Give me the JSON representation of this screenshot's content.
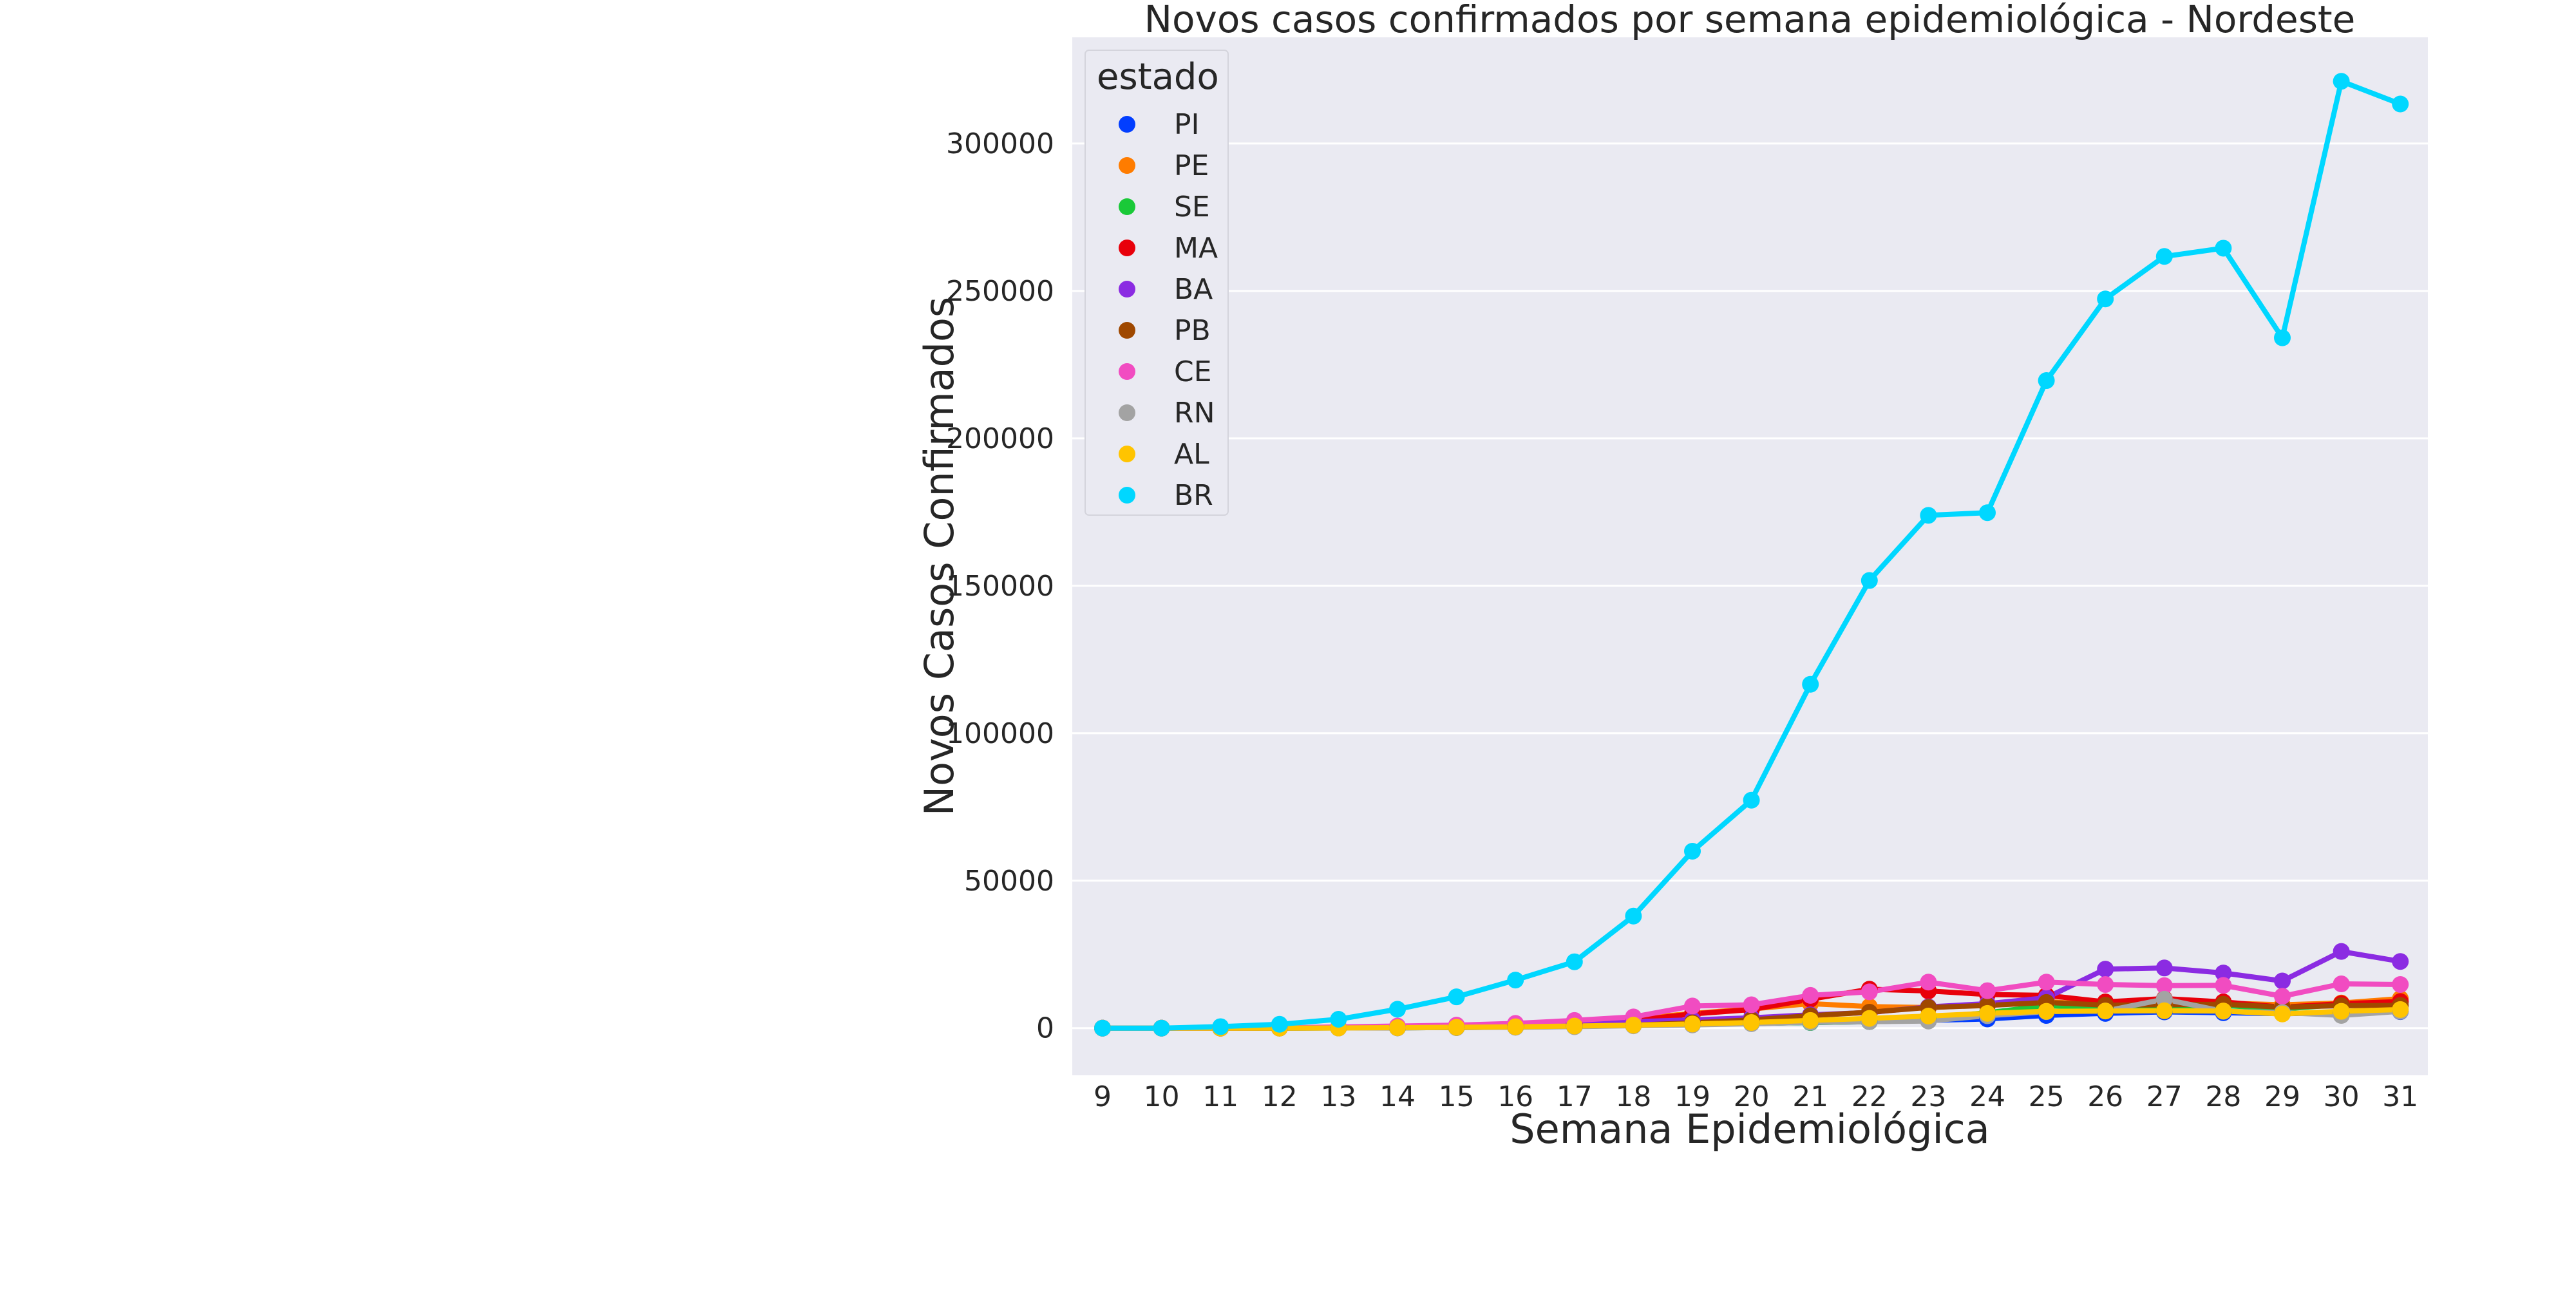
{
  "chart_data": {
    "type": "line",
    "title": "Novos casos confirmados por semana epidemiológica - Nordeste",
    "xlabel": "Semana Epidemiológica",
    "ylabel": "Novos Casos Confirmados",
    "x": [
      "9",
      "10",
      "11",
      "12",
      "13",
      "14",
      "15",
      "16",
      "17",
      "18",
      "19",
      "20",
      "21",
      "22",
      "23",
      "24",
      "25",
      "26",
      "27",
      "28",
      "29",
      "30",
      "31"
    ],
    "ylim": [
      -16000,
      336000
    ],
    "y_ticks": [
      "0",
      "50000",
      "100000",
      "150000",
      "200000",
      "250000",
      "300000"
    ],
    "grid": true,
    "background": "#eaeaf2",
    "legend": {
      "title": "estado",
      "placement": "top-left"
    },
    "series": [
      {
        "name": "PI",
        "color": "#023eff",
        "values": [
          0,
          0,
          0,
          20,
          80,
          200,
          350,
          500,
          700,
          1000,
          1300,
          1600,
          1900,
          2200,
          2600,
          3100,
          4300,
          5000,
          5500,
          5200,
          4900,
          5300,
          5600
        ]
      },
      {
        "name": "PE",
        "color": "#ff7c00",
        "values": [
          0,
          0,
          0,
          40,
          200,
          500,
          900,
          1400,
          2000,
          3100,
          5000,
          6500,
          8300,
          7300,
          7000,
          7800,
          9000,
          7800,
          8000,
          8500,
          7900,
          8500,
          10000
        ]
      },
      {
        "name": "SE",
        "color": "#1ac938",
        "values": [
          0,
          0,
          0,
          10,
          40,
          100,
          200,
          350,
          550,
          900,
          1300,
          1600,
          1900,
          2200,
          3500,
          5200,
          7600,
          7000,
          7300,
          7700,
          6500,
          8000,
          8800
        ]
      },
      {
        "name": "MA",
        "color": "#e8000b",
        "values": [
          0,
          0,
          0,
          20,
          150,
          350,
          700,
          1100,
          1600,
          2600,
          4800,
          6300,
          9800,
          13200,
          12600,
          11400,
          11100,
          8900,
          10000,
          8900,
          7100,
          8300,
          9000
        ]
      },
      {
        "name": "BA",
        "color": "#8b2be2",
        "values": [
          0,
          0,
          0,
          40,
          150,
          400,
          700,
          1000,
          1400,
          2200,
          2800,
          3500,
          4500,
          5300,
          7200,
          8300,
          10300,
          20000,
          20400,
          18700,
          16000,
          26000,
          22600
        ]
      },
      {
        "name": "PB",
        "color": "#9f4800",
        "values": [
          0,
          0,
          0,
          10,
          40,
          100,
          200,
          350,
          600,
          1000,
          1800,
          2800,
          4200,
          5400,
          7000,
          7700,
          8700,
          7800,
          7900,
          8100,
          7100,
          7600,
          7700
        ]
      },
      {
        "name": "CE",
        "color": "#f14cc1",
        "values": [
          0,
          0,
          0,
          80,
          400,
          700,
          1000,
          1600,
          2600,
          3800,
          7500,
          7900,
          11100,
          12300,
          15600,
          12700,
          15600,
          14800,
          14400,
          14500,
          10800,
          15000,
          14800
        ]
      },
      {
        "name": "RN",
        "color": "#a3a3a3",
        "values": [
          0,
          0,
          0,
          10,
          40,
          100,
          200,
          300,
          500,
          800,
          1100,
          1500,
          2000,
          2200,
          2400,
          4200,
          5600,
          5800,
          9800,
          5700,
          5300,
          4300,
          5700
        ]
      },
      {
        "name": "AL",
        "color": "#ffc400",
        "values": [
          0,
          0,
          0,
          10,
          50,
          150,
          300,
          450,
          700,
          1000,
          1400,
          1900,
          2600,
          3300,
          4100,
          5000,
          5700,
          5800,
          5900,
          5800,
          4800,
          5700,
          6300
        ]
      },
      {
        "name": "BR",
        "color": "#00d7ff",
        "values": [
          0,
          0,
          500,
          1300,
          3000,
          6400,
          10600,
          16300,
          22500,
          38000,
          60000,
          77300,
          116600,
          151800,
          173900,
          174800,
          219600,
          247300,
          261700,
          264500,
          234100,
          321100,
          313400
        ]
      }
    ]
  }
}
